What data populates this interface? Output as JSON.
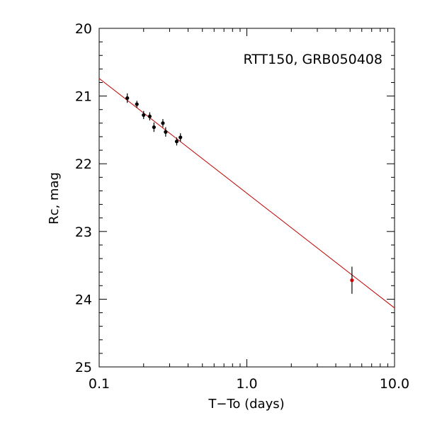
{
  "chart_data": {
    "type": "scatter",
    "title": "",
    "annotation": "RTT150, GRB050408",
    "xlabel": "T−To (days)",
    "ylabel": "Rc, mag",
    "xscale": "log",
    "xlim": [
      0.1,
      10.0
    ],
    "ylim": [
      20,
      25
    ],
    "y_inverted": true,
    "grid": false,
    "x_major_ticks": [
      0.1,
      1.0,
      10.0
    ],
    "x_tick_labels": [
      "0.1",
      "1.0",
      "10.0"
    ],
    "y_major_ticks": [
      20,
      21,
      22,
      23,
      24,
      25
    ],
    "y_tick_labels": [
      "20",
      "21",
      "22",
      "23",
      "24",
      "25"
    ],
    "series": [
      {
        "points": [
          {
            "x": 0.155,
            "y": 21.03,
            "yerr": 0.07
          },
          {
            "x": 0.18,
            "y": 21.12,
            "yerr": 0.05
          },
          {
            "x": 0.2,
            "y": 21.28,
            "yerr": 0.06
          },
          {
            "x": 0.22,
            "y": 21.3,
            "yerr": 0.06
          },
          {
            "x": 0.235,
            "y": 21.46,
            "yerr": 0.07
          },
          {
            "x": 0.27,
            "y": 21.4,
            "yerr": 0.06
          },
          {
            "x": 0.282,
            "y": 21.53,
            "yerr": 0.07
          },
          {
            "x": 0.335,
            "y": 21.67,
            "yerr": 0.06
          },
          {
            "x": 0.355,
            "y": 21.61,
            "yerr": 0.06
          }
        ],
        "color": "#000000"
      },
      {
        "points": [
          {
            "x": 5.15,
            "y": 23.72,
            "yerr": 0.2
          }
        ],
        "color": "#cc0000"
      }
    ],
    "fit_line": {
      "x1": 0.1,
      "y1": 20.74,
      "x2": 10.0,
      "y2": 24.13,
      "color": "#c00000"
    }
  }
}
